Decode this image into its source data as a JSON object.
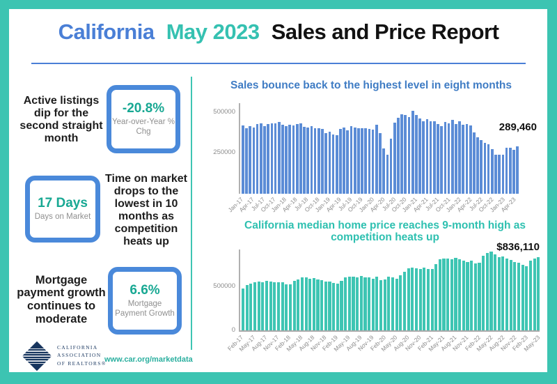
{
  "colors": {
    "frame_teal": "#3cc4b2",
    "brand_blue": "#4a7fd6",
    "brand_teal": "#35c1b1",
    "stat_value_teal": "#18a893",
    "stat_box_border_blue": "#4a89da",
    "sales_bar_blue": "#5b8cd6",
    "price_bar_teal": "#3ec5b3",
    "logo_navy": "#17355e"
  },
  "header": {
    "title_1": "California",
    "title_2": "May 2023",
    "title_3": "Sales and Price Report"
  },
  "sidebar": {
    "stats": [
      {
        "text": "Active listings dip for the second straight month",
        "value": "-20.8%",
        "label": "Year-over-Year % Chg"
      },
      {
        "text": "Time on market drops to the lowest in 10 months as competition heats up",
        "value": "17 Days",
        "label": "Days on Market"
      },
      {
        "text": "Mortgage payment growth continues to moderate",
        "value": "6.6%",
        "label": "Mortgage Payment Growth"
      }
    ]
  },
  "footer": {
    "logo_lines": [
      "CALIFORNIA",
      "ASSOCIATION",
      "OF REALTORS®"
    ],
    "link": "www.car.org/marketdata"
  },
  "chart_data": [
    {
      "type": "bar",
      "title": "Sales bounce back to the highest level in eight months",
      "title_color": "#3f7cc4",
      "bar_color": "#5b8cd6",
      "xlabel": "",
      "ylabel": "",
      "ylim": [
        0,
        556000
      ],
      "grid": false,
      "legend": "none",
      "baseline": false,
      "tick_every": 3,
      "yticks": [
        {
          "value": 250000,
          "label": "250000"
        },
        {
          "value": 500000,
          "label": "500000"
        }
      ],
      "annotation": "289,460",
      "x": [
        "Jan-17",
        "Feb-17",
        "Mar-17",
        "Apr-17",
        "May-17",
        "Jun-17",
        "Jul-17",
        "Aug-17",
        "Sep-17",
        "Oct-17",
        "Nov-17",
        "Dec-17",
        "Jan-18",
        "Feb-18",
        "Mar-18",
        "Apr-18",
        "May-18",
        "Jun-18",
        "Jul-18",
        "Aug-18",
        "Sep-18",
        "Oct-18",
        "Nov-18",
        "Dec-18",
        "Jan-19",
        "Feb-19",
        "Mar-19",
        "Apr-19",
        "May-19",
        "Jun-19",
        "Jul-19",
        "Aug-19",
        "Sep-19",
        "Oct-19",
        "Nov-19",
        "Dec-19",
        "Jan-20",
        "Feb-20",
        "Mar-20",
        "Apr-20",
        "May-20",
        "Jun-20",
        "Jul-20",
        "Aug-20",
        "Sep-20",
        "Oct-20",
        "Nov-20",
        "Dec-20",
        "Jan-21",
        "Feb-21",
        "Mar-21",
        "Apr-21",
        "May-21",
        "Jun-21",
        "Jul-21",
        "Aug-21",
        "Sep-21",
        "Oct-21",
        "Nov-21",
        "Dec-21",
        "Jan-22",
        "Feb-22",
        "Mar-22",
        "Apr-22",
        "May-22",
        "Jun-22",
        "Jul-22",
        "Aug-22",
        "Sep-22",
        "Oct-22",
        "Nov-22",
        "Dec-22",
        "Jan-23",
        "Feb-23",
        "Mar-23",
        "Apr-23",
        "May-23"
      ],
      "values": [
        420100,
        400800,
        416000,
        406300,
        425800,
        434000,
        414300,
        427600,
        430600,
        432000,
        440300,
        424600,
        416200,
        422900,
        417400,
        427100,
        433500,
        410100,
        406900,
        415100,
        404000,
        403200,
        397100,
        372300,
        382200,
        364000,
        358000,
        396800,
        406100,
        389700,
        415200,
        406100,
        404000,
        404200,
        402900,
        398900,
        395700,
        421700,
        373100,
        277400,
        238100,
        339900,
        437900,
        465200,
        489600,
        484500,
        469000,
        509800,
        484700,
        462700,
        446400,
        458200,
        445800,
        444500,
        428900,
        414900,
        438800,
        434200,
        454200,
        429900,
        444400,
        424000,
        426900,
        419000,
        377200,
        344900,
        330100,
        313500,
        305700,
        274000,
        237700,
        240300,
        241500,
        284000,
        281100,
        267900,
        289460
      ]
    },
    {
      "type": "bar",
      "title": "California median home price reaches 9-month high as competition heats up",
      "title_color": "#2ec0b0",
      "bar_color": "#3ec5b3",
      "xlabel": "",
      "ylabel": "",
      "ylim": [
        0,
        922000
      ],
      "grid": false,
      "legend": "none",
      "baseline": true,
      "tick_every": 3,
      "yticks": [
        {
          "value": 0,
          "label": "0"
        },
        {
          "value": 500000,
          "label": "500000"
        }
      ],
      "annotation": "$836,110",
      "x": [
        "Feb-17",
        "Mar-17",
        "Apr-17",
        "May-17",
        "Jun-17",
        "Jul-17",
        "Aug-17",
        "Sep-17",
        "Oct-17",
        "Nov-17",
        "Dec-17",
        "Jan-18",
        "Feb-18",
        "Mar-18",
        "Apr-18",
        "May-18",
        "Jun-18",
        "Jul-18",
        "Aug-18",
        "Sep-18",
        "Oct-18",
        "Nov-18",
        "Dec-18",
        "Jan-19",
        "Feb-19",
        "Mar-19",
        "Apr-19",
        "May-19",
        "Jun-19",
        "Jul-19",
        "Aug-19",
        "Sep-19",
        "Oct-19",
        "Nov-19",
        "Dec-19",
        "Jan-20",
        "Feb-20",
        "Mar-20",
        "Apr-20",
        "May-20",
        "Jun-20",
        "Jul-20",
        "Aug-20",
        "Sep-20",
        "Oct-20",
        "Nov-20",
        "Dec-20",
        "Jan-21",
        "Feb-21",
        "Mar-21",
        "Apr-21",
        "May-21",
        "Jun-21",
        "Jul-21",
        "Aug-21",
        "Sep-21",
        "Oct-21",
        "Nov-21",
        "Dec-21",
        "Jan-22",
        "Feb-22",
        "Mar-22",
        "Apr-22",
        "May-22",
        "Jun-22",
        "Jul-22",
        "Aug-22",
        "Sep-22",
        "Oct-22",
        "Nov-22",
        "Dec-22",
        "Jan-23",
        "Feb-23",
        "Mar-23",
        "Apr-23",
        "May-23"
      ],
      "values": [
        478790,
        517020,
        536750,
        550080,
        555150,
        549460,
        565330,
        555410,
        546430,
        546820,
        549560,
        527780,
        522440,
        564830,
        584460,
        600860,
        602760,
        591460,
        596410,
        578850,
        572000,
        554760,
        557600,
        538690,
        534140,
        565880,
        602920,
        611190,
        611420,
        607990,
        617410,
        605680,
        605280,
        589770,
        615090,
        575160,
        579770,
        612440,
        606410,
        588070,
        626170,
        666320,
        706900,
        712430,
        711300,
        699000,
        717930,
        699890,
        699000,
        758990,
        813980,
        818260,
        819630,
        811170,
        827940,
        808890,
        798440,
        782480,
        796570,
        765610,
        771270,
        849080,
        884890,
        898980,
        863790,
        833910,
        839460,
        821680,
        801190,
        777500,
        774580,
        751330,
        735480,
        791490,
        815340,
        836110
      ]
    }
  ]
}
